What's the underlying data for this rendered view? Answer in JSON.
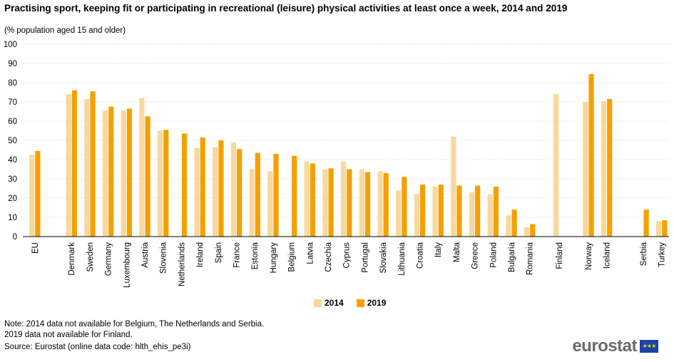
{
  "title": "Practising sport, keeping fit or participating in recreational (leisure) physical activities at least once a week, 2014 and 2019",
  "subtitle": "(% population aged 15 and older)",
  "legend": [
    {
      "label": "2014",
      "color": "#fad89b"
    },
    {
      "label": "2019",
      "color": "#f5a000"
    }
  ],
  "notes": [
    "Note: 2014 data not available for Belgium, The Netherlands and Serbia.",
    "2019 data not available for Finland."
  ],
  "source": "Source: Eurostat (online data code: hlth_ehis_pe3i)",
  "logo_text": "eurostat",
  "chart_data": {
    "type": "bar",
    "title": "Practising sport, keeping fit or participating in recreational (leisure) physical activities at least once a week, 2014 and 2019",
    "subtitle": "(% population aged 15 and older)",
    "xlabel": "",
    "ylabel": "",
    "ylim": [
      0,
      100
    ],
    "yticks": [
      0,
      10,
      20,
      30,
      40,
      50,
      60,
      70,
      80,
      90,
      100
    ],
    "grid": true,
    "legend_position": "bottom",
    "categories": [
      "EU",
      "Denmark",
      "Sweden",
      "Germany",
      "Luxembourg",
      "Austria",
      "Slovenia",
      "Netherlands",
      "Ireland",
      "Spain",
      "France",
      "Estonia",
      "Hungary",
      "Belgium",
      "Latvia",
      "Czechia",
      "Cyprus",
      "Portugal",
      "Slovakia",
      "Lithuania",
      "Croatia",
      "Italy",
      "Malta",
      "Greece",
      "Poland",
      "Bulgaria",
      "Romania",
      "Finland",
      "Norway",
      "Iceland",
      "Serbia",
      "Turkey"
    ],
    "series": [
      {
        "name": "2014",
        "color": "#fad89b",
        "values": [
          42.5,
          74,
          71.5,
          65.5,
          65.5,
          72,
          55,
          null,
          46,
          46.5,
          49,
          35,
          34,
          null,
          39,
          35,
          39,
          35,
          34,
          24,
          22,
          26,
          52,
          23,
          22,
          11,
          5,
          74,
          70,
          70.5,
          null,
          8
        ]
      },
      {
        "name": "2019",
        "color": "#f5a000",
        "values": [
          44.5,
          76,
          75.5,
          67.5,
          66.5,
          62.5,
          55.5,
          53.5,
          51.5,
          50,
          45.5,
          43.5,
          43,
          42,
          38,
          35.5,
          35,
          33.5,
          33,
          31,
          27,
          27,
          26.5,
          26.5,
          26,
          14,
          6.5,
          null,
          84.5,
          71.5,
          14,
          8.5
        ]
      }
    ]
  }
}
